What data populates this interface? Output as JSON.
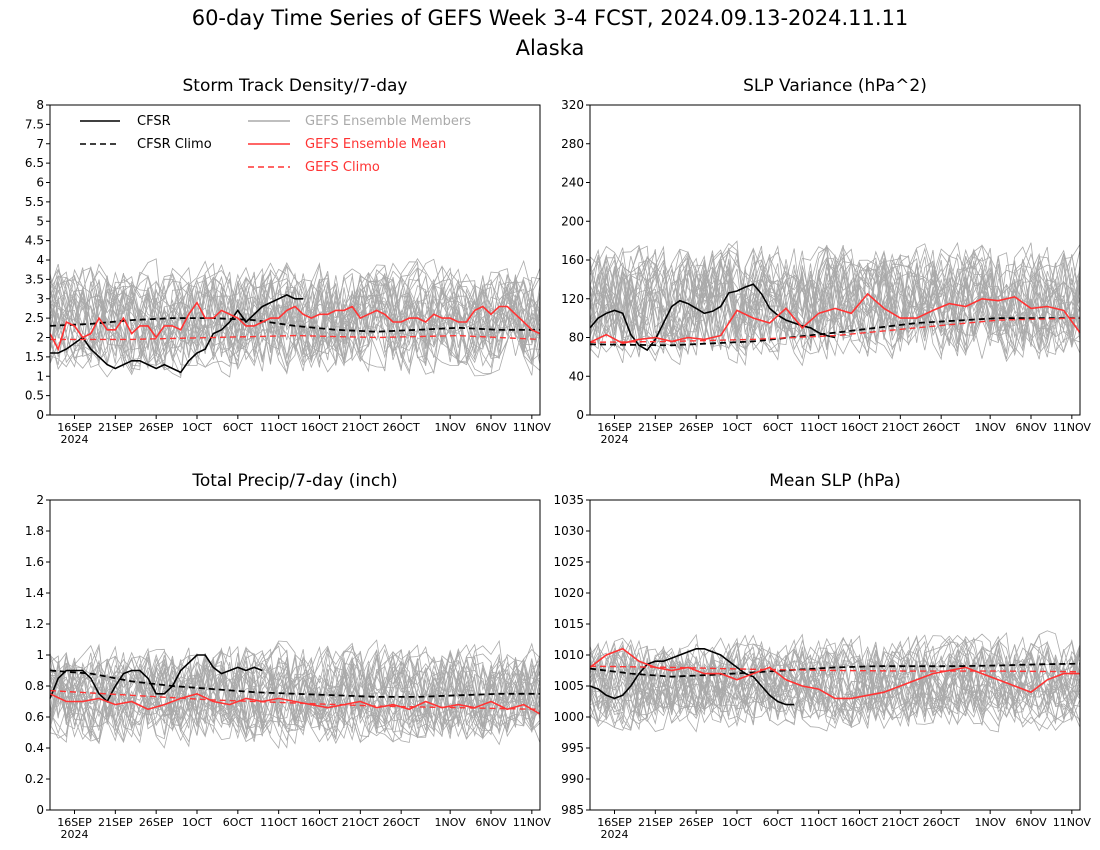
{
  "title": "60-day Time Series of GEFS Week 3-4 FCST, 2024.09.13-2024.11.11",
  "subtitle": "Alaska",
  "colors": {
    "cfsr": "#000000",
    "members": "#aaaaaa",
    "mean": "#ff3333",
    "gefs_climo": "#ff3333"
  },
  "legend": [
    {
      "key": "cfsr",
      "label": "CFSR",
      "style": "solid"
    },
    {
      "key": "cfsr_climo",
      "label": "CFSR Climo",
      "style": "dashed"
    },
    {
      "key": "members",
      "label": "GEFS Ensemble Members",
      "style": "solid"
    },
    {
      "key": "mean",
      "label": "GEFS Ensemble Mean",
      "style": "solid"
    },
    {
      "key": "gefs_climo",
      "label": "GEFS Climo",
      "style": "dashed"
    }
  ],
  "x_ticks": [
    {
      "day": 3,
      "label": "16SEP"
    },
    {
      "day": 8,
      "label": "21SEP"
    },
    {
      "day": 13,
      "label": "26SEP"
    },
    {
      "day": 18,
      "label": "1OCT"
    },
    {
      "day": 23,
      "label": "6OCT"
    },
    {
      "day": 28,
      "label": "11OCT"
    },
    {
      "day": 33,
      "label": "16OCT"
    },
    {
      "day": 38,
      "label": "21OCT"
    },
    {
      "day": 43,
      "label": "26OCT"
    },
    {
      "day": 49,
      "label": "1NOV"
    },
    {
      "day": 54,
      "label": "6NOV"
    },
    {
      "day": 59,
      "label": "11NOV"
    }
  ],
  "x_year_label": "2024",
  "chart_data": [
    {
      "type": "line",
      "title": "Storm Track Density/7-day",
      "ylim": [
        0,
        8
      ],
      "yticks": [
        "0",
        "0.5",
        "1",
        "1.5",
        "2",
        "2.5",
        "3",
        "3.5",
        "4",
        "4.5",
        "5",
        "5.5",
        "6",
        "6.5",
        "7",
        "7.5",
        "8"
      ],
      "ensemble_members": {
        "count": 31,
        "typical_range": [
          0.5,
          4.5
        ]
      },
      "series": [
        {
          "name": "CFSR",
          "x": [
            0,
            1,
            2,
            4,
            5,
            7,
            8,
            10,
            11,
            13,
            14,
            16,
            17,
            18,
            19,
            20,
            21,
            22,
            23,
            24,
            25,
            26,
            27,
            28,
            29,
            30,
            31,
            32,
            33
          ],
          "values": [
            1.6,
            1.6,
            1.7,
            2.0,
            1.7,
            1.3,
            1.2,
            1.4,
            1.4,
            1.2,
            1.3,
            1.1,
            1.4,
            1.6,
            1.7,
            2.1,
            2.2,
            2.4,
            2.7,
            2.4,
            2.6,
            2.8,
            2.9,
            3.0,
            3.1,
            3.0,
            3.0,
            null,
            null
          ]
        },
        {
          "name": "CFSR Climo",
          "x": [
            0,
            5,
            10,
            15,
            20,
            25,
            30,
            35,
            40,
            45,
            50,
            55,
            60
          ],
          "values": [
            2.3,
            2.35,
            2.45,
            2.5,
            2.5,
            2.45,
            2.3,
            2.2,
            2.15,
            2.2,
            2.25,
            2.2,
            2.2
          ]
        },
        {
          "name": "GEFS Ensemble Mean",
          "x": [
            0,
            1,
            2,
            3,
            4,
            5,
            6,
            7,
            8,
            9,
            10,
            11,
            12,
            13,
            14,
            15,
            16,
            17,
            18,
            19,
            20,
            21,
            22,
            23,
            24,
            25,
            26,
            27,
            28,
            29,
            30,
            31,
            32,
            33,
            34,
            35,
            36,
            37,
            38,
            39,
            40,
            41,
            42,
            43,
            44,
            45,
            46,
            47,
            48,
            49,
            50,
            51,
            52,
            53,
            54,
            55,
            56,
            57,
            58,
            59,
            60
          ],
          "values": [
            2.1,
            1.7,
            2.4,
            2.3,
            2.0,
            2.1,
            2.5,
            2.2,
            2.2,
            2.5,
            2.1,
            2.3,
            2.3,
            2.0,
            2.3,
            2.3,
            2.2,
            2.6,
            2.9,
            2.5,
            2.5,
            2.7,
            2.6,
            2.5,
            2.3,
            2.3,
            2.4,
            2.5,
            2.5,
            2.7,
            2.8,
            2.6,
            2.5,
            2.6,
            2.6,
            2.7,
            2.7,
            2.8,
            2.5,
            2.6,
            2.7,
            2.6,
            2.4,
            2.4,
            2.5,
            2.5,
            2.4,
            2.6,
            2.5,
            2.5,
            2.4,
            2.4,
            2.7,
            2.8,
            2.6,
            2.8,
            2.8,
            2.6,
            2.4,
            2.2,
            2.1
          ]
        },
        {
          "name": "GEFS Climo",
          "x": [
            0,
            10,
            20,
            30,
            40,
            50,
            60
          ],
          "values": [
            1.95,
            1.95,
            2.0,
            2.05,
            2.0,
            2.05,
            1.95
          ]
        }
      ]
    },
    {
      "type": "line",
      "title": "SLP Variance (hPa^2)",
      "ylim": [
        0,
        320
      ],
      "yticks": [
        "0",
        "40",
        "80",
        "120",
        "160",
        "200",
        "240",
        "280",
        "320"
      ],
      "ensemble_members": {
        "count": 31,
        "typical_range": [
          30,
          200
        ]
      },
      "series": [
        {
          "name": "CFSR",
          "x": [
            0,
            1,
            2,
            3,
            4,
            5,
            6,
            7,
            8,
            9,
            10,
            11,
            12,
            13,
            14,
            15,
            16,
            17,
            18,
            19,
            20,
            21,
            22,
            23,
            24,
            25,
            26,
            27,
            28,
            29,
            30,
            31,
            32,
            33
          ],
          "values": [
            90,
            100,
            105,
            108,
            105,
            83,
            72,
            67,
            78,
            95,
            112,
            118,
            115,
            110,
            105,
            107,
            112,
            126,
            128,
            132,
            135,
            125,
            110,
            103,
            98,
            95,
            92,
            90,
            85,
            82,
            80,
            null,
            null,
            null
          ]
        },
        {
          "name": "CFSR Climo",
          "x": [
            0,
            10,
            20,
            30,
            40,
            50,
            60
          ],
          "values": [
            73,
            72,
            76,
            85,
            95,
            100,
            100
          ]
        },
        {
          "name": "GEFS Ensemble Mean",
          "x": [
            0,
            2,
            4,
            6,
            8,
            10,
            12,
            14,
            16,
            18,
            20,
            22,
            24,
            26,
            28,
            30,
            32,
            34,
            36,
            38,
            40,
            42,
            44,
            46,
            48,
            50,
            52,
            54,
            56,
            58,
            60
          ],
          "values": [
            75,
            83,
            74,
            78,
            80,
            76,
            80,
            78,
            82,
            108,
            100,
            95,
            110,
            90,
            105,
            110,
            105,
            125,
            110,
            100,
            100,
            108,
            115,
            112,
            120,
            118,
            122,
            110,
            112,
            108,
            85
          ]
        },
        {
          "name": "GEFS Climo",
          "x": [
            0,
            10,
            20,
            30,
            40,
            50,
            60
          ],
          "values": [
            75,
            76,
            78,
            82,
            90,
            98,
            100
          ]
        }
      ]
    },
    {
      "type": "line",
      "title": "Total Precip/7-day (inch)",
      "ylim": [
        0,
        2
      ],
      "yticks": [
        "0",
        "0.2",
        "0.4",
        "0.6",
        "0.8",
        "1",
        "1.2",
        "1.4",
        "1.6",
        "1.8",
        "2"
      ],
      "ensemble_members": {
        "count": 31,
        "typical_range": [
          0.3,
          1.2
        ]
      },
      "series": [
        {
          "name": "CFSR",
          "x": [
            0,
            1,
            2,
            3,
            4,
            5,
            6,
            7,
            8,
            9,
            10,
            11,
            12,
            13,
            14,
            15,
            16,
            17,
            18,
            19,
            20,
            21,
            22,
            23,
            24,
            25,
            26,
            27,
            28,
            29,
            30,
            31,
            32
          ],
          "values": [
            0.72,
            0.85,
            0.9,
            0.9,
            0.9,
            0.85,
            0.75,
            0.7,
            0.8,
            0.88,
            0.9,
            0.9,
            0.85,
            0.75,
            0.75,
            0.8,
            0.9,
            0.95,
            1.0,
            1.0,
            0.92,
            0.88,
            0.9,
            0.92,
            0.9,
            0.92,
            0.9,
            null,
            null,
            null,
            null,
            null,
            null
          ]
        },
        {
          "name": "CFSR Climo",
          "x": [
            0,
            5,
            10,
            15,
            20,
            25,
            30,
            35,
            40,
            45,
            50,
            55,
            60
          ],
          "values": [
            0.9,
            0.88,
            0.83,
            0.8,
            0.78,
            0.76,
            0.75,
            0.74,
            0.73,
            0.73,
            0.74,
            0.75,
            0.75
          ]
        },
        {
          "name": "GEFS Ensemble Mean",
          "x": [
            0,
            2,
            4,
            6,
            8,
            10,
            12,
            14,
            16,
            18,
            20,
            22,
            24,
            26,
            28,
            30,
            32,
            34,
            36,
            38,
            40,
            42,
            44,
            46,
            48,
            50,
            52,
            54,
            56,
            58,
            60
          ],
          "values": [
            0.75,
            0.7,
            0.7,
            0.72,
            0.68,
            0.7,
            0.65,
            0.68,
            0.72,
            0.75,
            0.7,
            0.68,
            0.72,
            0.7,
            0.72,
            0.7,
            0.68,
            0.66,
            0.68,
            0.7,
            0.66,
            0.68,
            0.65,
            0.7,
            0.66,
            0.68,
            0.66,
            0.7,
            0.65,
            0.68,
            0.62
          ]
        },
        {
          "name": "GEFS Climo",
          "x": [
            0,
            10,
            20,
            30,
            40,
            50,
            60
          ],
          "values": [
            0.77,
            0.74,
            0.71,
            0.69,
            0.67,
            0.66,
            0.65
          ]
        }
      ]
    },
    {
      "type": "line",
      "title": "Mean SLP (hPa)",
      "ylim": [
        985,
        1035
      ],
      "yticks": [
        "985",
        "990",
        "995",
        "1000",
        "1005",
        "1010",
        "1015",
        "1020",
        "1025",
        "1030",
        "1035"
      ],
      "ensemble_members": {
        "count": 31,
        "typical_range": [
          995,
          1016
        ]
      },
      "series": [
        {
          "name": "CFSR",
          "x": [
            0,
            1,
            2,
            3,
            4,
            5,
            6,
            7,
            8,
            9,
            10,
            11,
            12,
            13,
            14,
            15,
            16,
            17,
            18,
            19,
            20,
            21,
            22,
            23,
            24,
            25,
            26,
            27,
            28,
            29,
            30,
            31,
            32
          ],
          "values": [
            1005,
            1004.5,
            1003.5,
            1003,
            1003.5,
            1005,
            1007,
            1008.5,
            1009,
            1009,
            1009.5,
            1010,
            1010.5,
            1011,
            1011,
            1010.5,
            1010,
            1009,
            1008,
            1007,
            1006.5,
            1005,
            1003.5,
            1002.5,
            1002,
            1002,
            null,
            null,
            null,
            null,
            null,
            null,
            null
          ]
        },
        {
          "name": "CFSR Climo",
          "x": [
            0,
            5,
            10,
            15,
            20,
            25,
            30,
            35,
            40,
            45,
            50,
            55,
            60
          ],
          "values": [
            1007.8,
            1007,
            1006.5,
            1006.8,
            1007.2,
            1007.6,
            1008,
            1008.2,
            1008.2,
            1008.2,
            1008.3,
            1008.5,
            1008.6
          ]
        },
        {
          "name": "GEFS Ensemble Mean",
          "x": [
            0,
            2,
            4,
            6,
            8,
            10,
            12,
            14,
            16,
            18,
            20,
            22,
            24,
            26,
            28,
            30,
            32,
            34,
            36,
            38,
            40,
            42,
            44,
            46,
            48,
            50,
            52,
            54,
            56,
            58,
            60
          ],
          "values": [
            1008,
            1010,
            1011,
            1009,
            1008,
            1007.5,
            1008,
            1007,
            1007,
            1006,
            1007,
            1008,
            1006,
            1005,
            1004.5,
            1003,
            1003,
            1003.5,
            1004,
            1005,
            1006,
            1007,
            1007.5,
            1008,
            1007,
            1006,
            1005,
            1004,
            1006,
            1007,
            1007
          ]
        },
        {
          "name": "GEFS Climo",
          "x": [
            0,
            10,
            20,
            30,
            40,
            50,
            60
          ],
          "values": [
            1008.2,
            1008,
            1007.7,
            1007.5,
            1007.4,
            1007.4,
            1007.3
          ]
        }
      ]
    }
  ]
}
